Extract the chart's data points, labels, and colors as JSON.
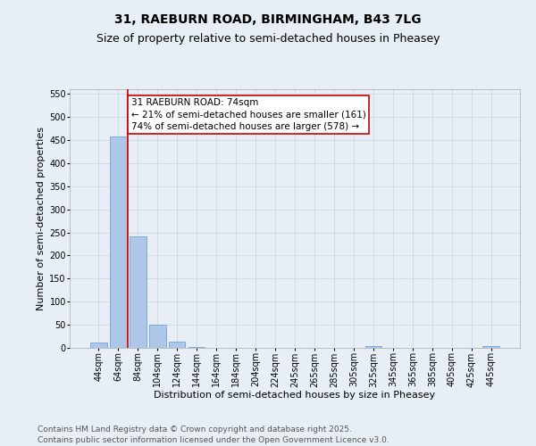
{
  "title_line1": "31, RAEBURN ROAD, BIRMINGHAM, B43 7LG",
  "title_line2": "Size of property relative to semi-detached houses in Pheasey",
  "xlabel": "Distribution of semi-detached houses by size in Pheasey",
  "ylabel": "Number of semi-detached properties",
  "categories": [
    "44sqm",
    "64sqm",
    "84sqm",
    "104sqm",
    "124sqm",
    "144sqm",
    "164sqm",
    "184sqm",
    "204sqm",
    "224sqm",
    "245sqm",
    "265sqm",
    "285sqm",
    "305sqm",
    "325sqm",
    "345sqm",
    "365sqm",
    "385sqm",
    "405sqm",
    "425sqm",
    "445sqm"
  ],
  "values": [
    12,
    458,
    242,
    51,
    14,
    2,
    0,
    0,
    0,
    0,
    0,
    0,
    0,
    0,
    4,
    0,
    0,
    0,
    0,
    0,
    4
  ],
  "bar_color": "#aec6e8",
  "bar_edge_color": "#5b9bd5",
  "grid_color": "#d0dcea",
  "background_color": "#e8eef6",
  "vline_x_index": 1.5,
  "vline_color": "#cc0000",
  "annotation_text": "31 RAEBURN ROAD: 74sqm\n← 21% of semi-detached houses are smaller (161)\n74% of semi-detached houses are larger (578) →",
  "annotation_box_facecolor": "#ffffff",
  "annotation_box_edgecolor": "#cc0000",
  "ylim": [
    0,
    560
  ],
  "yticks": [
    0,
    50,
    100,
    150,
    200,
    250,
    300,
    350,
    400,
    450,
    500,
    550
  ],
  "footnote": "Contains HM Land Registry data © Crown copyright and database right 2025.\nContains public sector information licensed under the Open Government Licence v3.0.",
  "title_fontsize": 10,
  "subtitle_fontsize": 9,
  "axis_label_fontsize": 8,
  "tick_fontsize": 7,
  "annotation_fontsize": 7.5,
  "footnote_fontsize": 6.5
}
